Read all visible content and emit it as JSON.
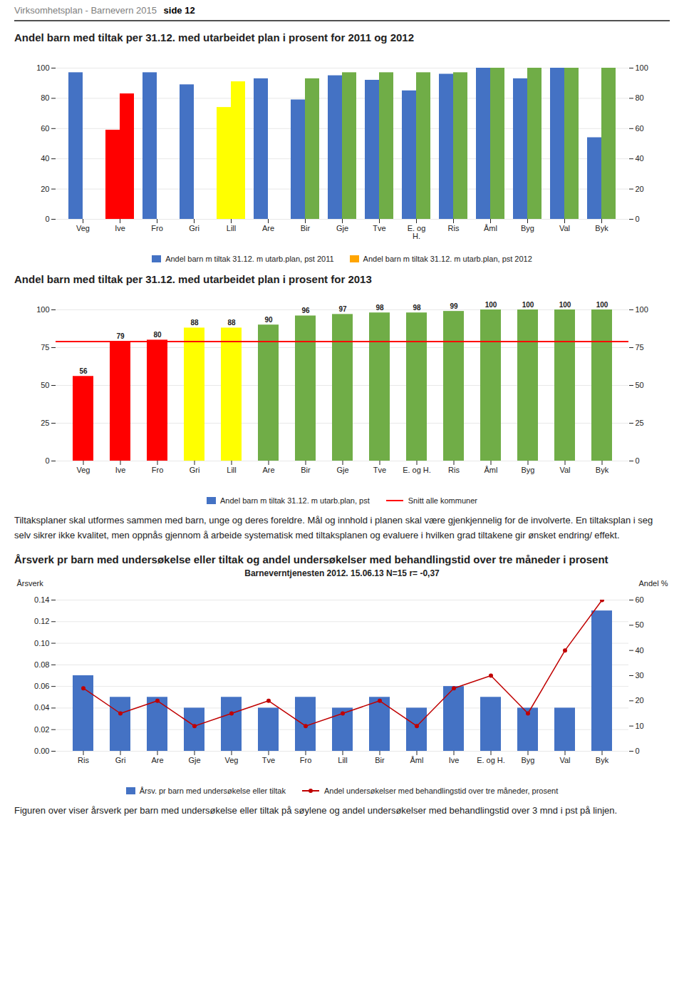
{
  "page_header": [
    "Virksomhetsplan - Barnevern 2015 ",
    "side 12"
  ],
  "chart_data": [
    {
      "type": "bar",
      "title": "Andel barn med tiltak per 31.12. med utarbeidet plan i prosent for 2011 og 2012",
      "categories": [
        "Veg",
        "Ive",
        "Fro",
        "Gri",
        "Lill",
        "Are",
        "Bir",
        "Gje",
        "Tve",
        "E. og\nH.",
        "Ris",
        "Åml",
        "Byg",
        "Val",
        "Byk"
      ],
      "series": [
        {
          "name": "Andel barn m tiltak 31.12. m utarb.plan, pst 2011",
          "color": "#4472C4",
          "colors": [
            "#4472C4",
            "#FF0000",
            "#4472C4",
            "#4472C4",
            "#FFFF00",
            "#4472C4",
            "#4472C4",
            "#4472C4",
            "#4472C4",
            "#4472C4",
            "#4472C4",
            "#4472C4",
            "#4472C4",
            "#4472C4",
            "#4472C4"
          ],
          "values": [
            97,
            59,
            97,
            89,
            74,
            93,
            79,
            95,
            92,
            85,
            96,
            100,
            93,
            100,
            54
          ]
        },
        {
          "name": "Andel barn m tiltak 31.12. m utarb.plan, pst 2012",
          "color": "#FFA500",
          "colors": [
            "#70AD47",
            "#FF0000",
            "#70AD47",
            "#70AD47",
            "#FFFF00",
            "#70AD47",
            "#70AD47",
            "#70AD47",
            "#70AD47",
            "#70AD47",
            "#70AD47",
            "#70AD47",
            "#70AD47",
            "#70AD47",
            "#70AD47"
          ],
          "values": [
            0,
            83,
            0,
            0,
            91,
            0,
            93,
            97,
            97,
            97,
            97,
            100,
            100,
            100,
            100
          ]
        }
      ],
      "ylim": [
        0,
        100
      ],
      "yticks": [
        0,
        20,
        40,
        60,
        80,
        100
      ],
      "grid": true,
      "legend": "bottom"
    },
    {
      "type": "bar",
      "title": "Andel barn med tiltak per 31.12. med utarbeidet plan i prosent for 2013",
      "categories": [
        "Veg",
        "Ive",
        "Fro",
        "Gri",
        "Lill",
        "Are",
        "Bir",
        "Gje",
        "Tve",
        "E. og H.",
        "Ris",
        "Åml",
        "Byg",
        "Val",
        "Byk"
      ],
      "series": [
        {
          "name": "Andel barn m tiltak 31.12. m utarb.plan, pst",
          "color": "#4472C4",
          "colors": [
            "#FF0000",
            "#FF0000",
            "#FF0000",
            "#FFFF00",
            "#FFFF00",
            "#70AD47",
            "#70AD47",
            "#70AD47",
            "#70AD47",
            "#70AD47",
            "#70AD47",
            "#70AD47",
            "#70AD47",
            "#70AD47",
            "#70AD47"
          ],
          "values": [
            56,
            79,
            80,
            88,
            88,
            90,
            96,
            97,
            98,
            98,
            99,
            100,
            100,
            100,
            100
          ]
        },
        {
          "name": "Snitt alle kommuner",
          "type": "rule",
          "color": "#FF0000",
          "value": 79
        }
      ],
      "ylim": [
        0,
        100
      ],
      "yticks": [
        0,
        25,
        50,
        75,
        100
      ],
      "grid": true,
      "data_labels": true,
      "legend": "bottom",
      "caption": "Tiltaksplaner skal utformes sammen med barn, unge og deres foreldre. Mål og innhold i planen skal være gjenkjennelig for de involverte. En tiltaksplan i seg selv sikrer ikke kvalitet, men oppnås gjennom å arbeide systematisk med tiltaksplanen og evaluere i hvilken grad tiltakene gir ønsket endring/ effekt."
    },
    {
      "type": "bar",
      "title": "Årsverk pr barn med undersøkelse eller tiltak og andel undersøkelser med behandlingstid over tre måneder i prosent",
      "subtitle": "Barneverntjenesten 2012. 15.06.13 N=15 r= -0,37",
      "categories": [
        "Ris",
        "Gri",
        "Are",
        "Gje",
        "Veg",
        "Tve",
        "Fro",
        "Lill",
        "Bir",
        "Åml",
        "Ive",
        "E. og H.",
        "Byg",
        "Val",
        "Byk"
      ],
      "series": [
        {
          "name": "Årsv. pr barn med undersøkelse eller tiltak",
          "type": "bar",
          "color": "#4472C4",
          "values": [
            0.07,
            0.05,
            0.05,
            0.04,
            0.05,
            0.04,
            0.05,
            0.04,
            0.05,
            0.04,
            0.06,
            0.05,
            0.04,
            0.04,
            0.13
          ]
        },
        {
          "name": "Andel undersøkelser med behandlingstid over tre måneder, prosent",
          "type": "line",
          "axis": "y2",
          "color": "#C00000",
          "marker": "o",
          "values": [
            25,
            15,
            20,
            10,
            15,
            20,
            10,
            15,
            20,
            10,
            25,
            30,
            15,
            40,
            60
          ]
        }
      ],
      "ylabel": "Årsverk",
      "y2label": "Andel %",
      "ylim": [
        0,
        0.14
      ],
      "yticks": [
        {
          "value": 0,
          "label": "0.00"
        },
        0.02,
        0.04,
        0.06,
        0.08,
        {
          "value": 0.1,
          "label": "0.10"
        },
        0.12,
        0.14
      ],
      "y2lim": [
        0,
        60
      ],
      "y2ticks": [
        0,
        10,
        20,
        30,
        40,
        50,
        60
      ],
      "grid": true,
      "legend": "bottom",
      "caption": "Figuren over viser årsverk per barn med undersøkelse eller tiltak på søylene og andel undersøkelser med behandlingstid over 3 mnd i pst på linjen."
    }
  ]
}
